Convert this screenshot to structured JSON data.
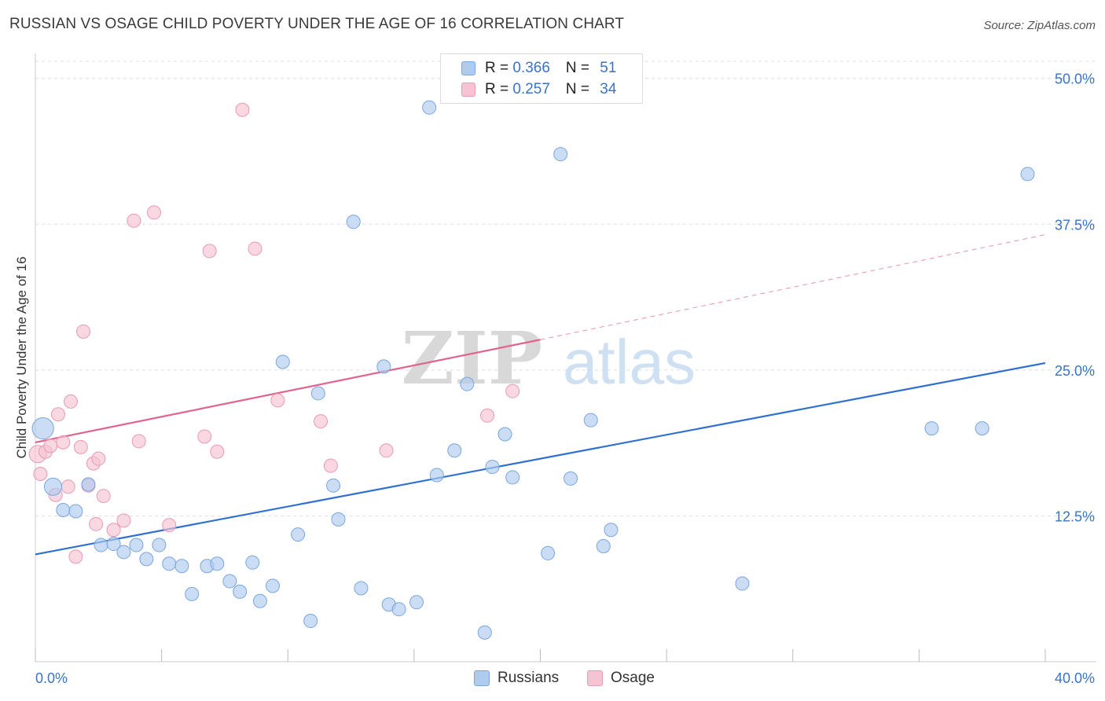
{
  "header": {
    "title": "RUSSIAN VS OSAGE CHILD POVERTY UNDER THE AGE OF 16 CORRELATION CHART",
    "source": "Source: ZipAtlas.com"
  },
  "watermark": {
    "zip": "ZIP",
    "atlas": "atlas"
  },
  "legend_top": {
    "rows": [
      {
        "r_label": "R = ",
        "r_value": "0.366",
        "n_label": "N = ",
        "n_value": "51"
      },
      {
        "r_label": "R = ",
        "r_value": "0.257",
        "n_label": "N = ",
        "n_value": "34"
      }
    ]
  },
  "legend_bottom": {
    "russians": "Russians",
    "osage": "Osage"
  },
  "colors": {
    "russians_fill": "#aecbf0",
    "russians_stroke": "#7aa6de",
    "russians_line": "#2e6fcf",
    "osage_fill": "#f6c3d3",
    "osage_stroke": "#e99ab5",
    "osage_line": "#e0648e",
    "axis_label": "#3a73c9"
  },
  "chart_data": {
    "type": "scatter",
    "title": "RUSSIAN VS OSAGE CHILD POVERTY UNDER THE AGE OF 16 CORRELATION CHART",
    "xlabel": "",
    "ylabel": "Child Poverty Under the Age of 16",
    "xlim": [
      0,
      40
    ],
    "ylim": [
      0,
      52
    ],
    "x_tick_labels": [
      "0.0%",
      "40.0%"
    ],
    "y_ticks": [
      12.5,
      25.0,
      37.5,
      50.0
    ],
    "y_tick_labels": [
      "12.5%",
      "25.0%",
      "37.5%",
      "50.0%"
    ],
    "grid": true,
    "legend_position": "top-center",
    "series": [
      {
        "name": "Russians",
        "r": 0.366,
        "n": 51,
        "trend": {
          "x": [
            0,
            40
          ],
          "y": [
            9.2,
            25.6
          ]
        },
        "points": [
          [
            0.3,
            20.0,
            1.6
          ],
          [
            0.7,
            15.0,
            1.3
          ],
          [
            1.1,
            13.0,
            1.0
          ],
          [
            1.6,
            12.9,
            1.0
          ],
          [
            2.1,
            15.2,
            1.0
          ],
          [
            2.6,
            10.0,
            1.0
          ],
          [
            3.1,
            10.1,
            1.0
          ],
          [
            3.5,
            9.4,
            1.0
          ],
          [
            4.0,
            10.0,
            1.0
          ],
          [
            4.4,
            8.8,
            1.0
          ],
          [
            4.9,
            10.0,
            1.0
          ],
          [
            5.3,
            8.4,
            1.0
          ],
          [
            5.8,
            8.2,
            1.0
          ],
          [
            6.2,
            5.8,
            1.0
          ],
          [
            6.8,
            8.2,
            1.0
          ],
          [
            7.2,
            8.4,
            1.0
          ],
          [
            7.7,
            6.9,
            1.0
          ],
          [
            8.1,
            6.0,
            1.0
          ],
          [
            8.6,
            8.5,
            1.0
          ],
          [
            8.9,
            5.2,
            1.0
          ],
          [
            9.4,
            6.5,
            1.0
          ],
          [
            9.8,
            25.7,
            1.0
          ],
          [
            10.4,
            10.9,
            1.0
          ],
          [
            10.9,
            3.5,
            1.0
          ],
          [
            11.2,
            23.0,
            1.0
          ],
          [
            11.8,
            15.1,
            1.0
          ],
          [
            12.0,
            12.2,
            1.0
          ],
          [
            12.6,
            37.7,
            1.0
          ],
          [
            12.9,
            6.3,
            1.0
          ],
          [
            13.8,
            25.3,
            1.0
          ],
          [
            14.0,
            4.9,
            1.0
          ],
          [
            14.4,
            4.5,
            1.0
          ],
          [
            15.1,
            5.1,
            1.0
          ],
          [
            15.6,
            47.5,
            1.0
          ],
          [
            15.9,
            16.0,
            1.0
          ],
          [
            16.6,
            18.1,
            1.0
          ],
          [
            17.1,
            23.8,
            1.0
          ],
          [
            17.8,
            2.5,
            1.0
          ],
          [
            18.1,
            16.7,
            1.0
          ],
          [
            18.6,
            19.5,
            1.0
          ],
          [
            18.9,
            15.8,
            1.0
          ],
          [
            20.3,
            9.3,
            1.0
          ],
          [
            20.8,
            43.5,
            1.0
          ],
          [
            21.2,
            15.7,
            1.0
          ],
          [
            22.0,
            20.7,
            1.0
          ],
          [
            22.5,
            9.9,
            1.0
          ],
          [
            22.8,
            11.3,
            1.0
          ],
          [
            28.0,
            6.7,
            1.0
          ],
          [
            35.5,
            20.0,
            1.0
          ],
          [
            37.5,
            20.0,
            1.0
          ],
          [
            39.3,
            41.8,
            1.0
          ]
        ]
      },
      {
        "name": "Osage",
        "r": 0.257,
        "n": 34,
        "trend": {
          "x": [
            0,
            20
          ],
          "y": [
            18.8,
            27.6
          ]
        },
        "trend_extension": {
          "x": [
            20,
            40
          ],
          "y": [
            27.6,
            36.6
          ]
        },
        "points": [
          [
            0.1,
            17.8,
            1.3
          ],
          [
            0.2,
            16.1,
            1.0
          ],
          [
            0.4,
            18.0,
            1.0
          ],
          [
            0.6,
            18.5,
            1.0
          ],
          [
            0.8,
            14.3,
            1.0
          ],
          [
            0.9,
            21.2,
            1.0
          ],
          [
            1.1,
            18.8,
            1.0
          ],
          [
            1.3,
            15.0,
            1.0
          ],
          [
            1.4,
            22.3,
            1.0
          ],
          [
            1.6,
            9.0,
            1.0
          ],
          [
            1.8,
            18.4,
            1.0
          ],
          [
            1.9,
            28.3,
            1.0
          ],
          [
            2.1,
            15.1,
            1.0
          ],
          [
            2.3,
            17.0,
            1.0
          ],
          [
            2.4,
            11.8,
            1.0
          ],
          [
            2.5,
            17.4,
            1.0
          ],
          [
            2.7,
            14.2,
            1.0
          ],
          [
            3.1,
            11.3,
            1.0
          ],
          [
            3.5,
            12.1,
            1.0
          ],
          [
            3.9,
            37.8,
            1.0
          ],
          [
            4.1,
            18.9,
            1.0
          ],
          [
            4.7,
            38.5,
            1.0
          ],
          [
            5.3,
            11.7,
            1.0
          ],
          [
            6.7,
            19.3,
            1.0
          ],
          [
            6.9,
            35.2,
            1.0
          ],
          [
            7.2,
            18.0,
            1.0
          ],
          [
            8.2,
            47.3,
            1.0
          ],
          [
            8.7,
            35.4,
            1.0
          ],
          [
            9.6,
            22.4,
            1.0
          ],
          [
            11.3,
            20.6,
            1.0
          ],
          [
            11.7,
            16.8,
            1.0
          ],
          [
            13.9,
            18.1,
            1.0
          ],
          [
            17.9,
            21.1,
            1.0
          ],
          [
            18.9,
            23.2,
            1.0
          ]
        ]
      }
    ]
  }
}
